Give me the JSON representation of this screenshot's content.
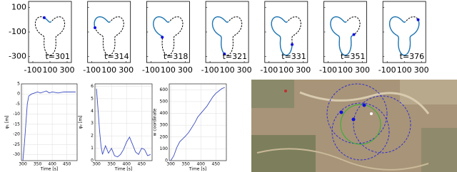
{
  "chart_data": [
    {
      "type": "trajectory",
      "panels": [
        "t=301",
        "t=314",
        "t=318",
        "t=321",
        "t=331",
        "t=351",
        "t=376"
      ],
      "xlim": [
        -150,
        350
      ],
      "ylim": [
        -350,
        150
      ],
      "xticks": [
        -100,
        100,
        300
      ],
      "yticks": [
        100,
        -100,
        -300
      ],
      "color": "#1f77b4"
    },
    {
      "type": "line",
      "xlabel": "Time [s]",
      "ylabel": "φ₁ [m]",
      "x": [
        300,
        305,
        310,
        315,
        320,
        330,
        340,
        350,
        360,
        370,
        380,
        390,
        400,
        420,
        440,
        460,
        480
      ],
      "values": [
        -33,
        -25,
        -15,
        -5,
        -1,
        0,
        0.5,
        1,
        0.5,
        1,
        1.5,
        0.5,
        1,
        0.5,
        1,
        1,
        1
      ],
      "xlim": [
        295,
        485
      ],
      "ylim": [
        -33,
        5
      ],
      "xticks": [
        300,
        350,
        400,
        450
      ],
      "yticks": [
        5,
        0,
        -5,
        -10,
        -15,
        -20,
        -25,
        -30
      ],
      "color": "#3b4cc0",
      "grid": true
    },
    {
      "type": "line",
      "xlabel": "Time [s]",
      "ylabel": "φ₂ [m]",
      "x": [
        300,
        305,
        310,
        315,
        320,
        330,
        340,
        350,
        360,
        370,
        380,
        390,
        400,
        410,
        420,
        430,
        440,
        450,
        460,
        470,
        480
      ],
      "values": [
        5.8,
        4.2,
        2.5,
        1.2,
        0.5,
        1.2,
        0.6,
        1.0,
        0.4,
        0.3,
        0.5,
        0.9,
        1.5,
        1.9,
        1.3,
        0.7,
        0.5,
        1.0,
        0.9,
        0.4,
        0.5
      ],
      "xlim": [
        295,
        485
      ],
      "ylim": [
        0,
        6.2
      ],
      "xticks": [
        300,
        350,
        400,
        450
      ],
      "yticks": [
        0,
        1,
        2,
        3,
        4,
        5,
        6
      ],
      "color": "#3b4cc0",
      "grid": true
    },
    {
      "type": "line",
      "xlabel": "Time [s]",
      "ylabel": "w coordinate",
      "x": [
        300,
        310,
        320,
        330,
        340,
        350,
        360,
        370,
        380,
        390,
        400,
        410,
        420,
        430,
        440,
        450,
        460,
        470,
        480
      ],
      "values": [
        0,
        40,
        110,
        160,
        185,
        210,
        240,
        280,
        320,
        370,
        400,
        430,
        460,
        500,
        540,
        570,
        590,
        610,
        620
      ],
      "xlim": [
        295,
        485
      ],
      "ylim": [
        0,
        650
      ],
      "xticks": [
        300,
        350,
        400,
        450
      ],
      "yticks": [
        0,
        100,
        200,
        300,
        400,
        500,
        600
      ],
      "color": "#3b4cc0",
      "grid": true
    }
  ]
}
